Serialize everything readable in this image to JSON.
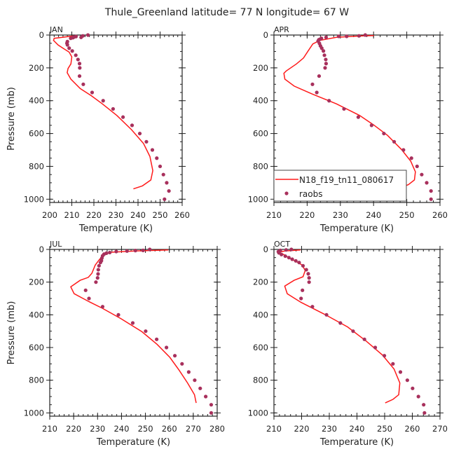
{
  "title": "Thule_Greenland  latitude= 77 N longitude= 67 W",
  "legend": {
    "model": "N18_f19_tn11_080617",
    "obs": "raobs"
  },
  "colors": {
    "model": "#ff1a1a",
    "obs": "#a8305c",
    "axis": "#222222"
  },
  "chart_data": [
    {
      "type": "line",
      "title": "JAN",
      "xlabel": "Temperature (K)",
      "ylabel": "Pressure (mb)",
      "xlim": [
        200,
        260
      ],
      "ylim": [
        0,
        1020
      ],
      "y_inverted": true,
      "xticks": [
        200,
        210,
        220,
        230,
        240,
        250,
        260
      ],
      "yticks": [
        0,
        200,
        400,
        600,
        800,
        1000
      ],
      "model": {
        "T": [
          210.8,
          202,
          201.7,
          203.8,
          206.3,
          208.8,
          210,
          209.6,
          208.3,
          207.9,
          209.6,
          213.8,
          218.8,
          223.8,
          230.4,
          237,
          242.5,
          245.4,
          246.7,
          245.8,
          242,
          237.9
        ],
        "p": [
          5,
          20,
          33,
          61,
          83,
          104,
          133,
          176,
          204,
          229,
          269,
          326,
          369,
          419,
          490,
          576,
          661,
          740,
          826,
          883,
          919,
          937
        ]
      },
      "raobs": {
        "T": [
          217.3,
          215,
          214.2,
          211.9,
          211,
          210.5,
          209.5,
          208,
          207.8,
          208,
          208.8,
          210.2,
          211.8,
          212.8,
          213.5,
          213.6,
          213.5,
          215.2,
          219.2,
          224.2,
          228.7,
          233.2,
          237.3,
          240.8,
          243.8,
          246.5,
          248.5,
          250,
          251.5,
          253,
          254,
          252
        ],
        "p": [
          0,
          5,
          14,
          9,
          12,
          16,
          20,
          40,
          50,
          60,
          80,
          97,
          123,
          149,
          174,
          200,
          250,
          300,
          350,
          400,
          450,
          500,
          550,
          600,
          650,
          700,
          750,
          800,
          850,
          900,
          950,
          1000
        ]
      }
    },
    {
      "type": "line",
      "title": "APR",
      "xlabel": "Temperature (K)",
      "ylabel": "",
      "xlim": [
        210,
        260
      ],
      "ylim": [
        0,
        1020
      ],
      "y_inverted": true,
      "xticks": [
        210,
        220,
        230,
        240,
        250,
        260
      ],
      "yticks": [
        0,
        200,
        400,
        600,
        800,
        1000
      ],
      "model": {
        "T": [
          240.1,
          235.8,
          228.8,
          223.8,
          221.7,
          220.3,
          218.9,
          216.8,
          213.7,
          213,
          213.3,
          216.1,
          221.7,
          228.8,
          235.8,
          240,
          244.2,
          248.4,
          251.2,
          252.6,
          252.3,
          250.5,
          247.4
        ],
        "p": [
          3,
          6,
          14,
          33,
          54,
          97,
          140,
          176,
          219,
          233,
          269,
          311,
          361,
          419,
          490,
          547,
          611,
          697,
          769,
          833,
          883,
          911,
          937
        ]
      },
      "raobs": {
        "T": [
          237.5,
          235.6,
          231.9,
          229.5,
          225.7,
          224.3,
          223.8,
          223.5,
          223.3,
          223.7,
          224,
          224.4,
          224.9,
          225.2,
          225.6,
          225.7,
          225.4,
          223.6,
          221.6,
          222.9,
          226.6,
          231.1,
          235.4,
          239.4,
          243.1,
          246.2,
          249,
          251.4,
          253.1,
          254.5,
          256,
          257.3,
          257.3
        ],
        "p": [
          0,
          5,
          8,
          8,
          14,
          20,
          26,
          29,
          37,
          51,
          66,
          80,
          97,
          123,
          149,
          174,
          200,
          250,
          300,
          350,
          400,
          450,
          500,
          550,
          600,
          650,
          700,
          750,
          800,
          850,
          900,
          950,
          1000
        ]
      }
    },
    {
      "type": "line",
      "title": "JUL",
      "xlabel": "Temperature (K)",
      "ylabel": "Pressure (mb)",
      "xlim": [
        210,
        280
      ],
      "ylim": [
        0,
        1020
      ],
      "y_inverted": true,
      "xticks": [
        210,
        220,
        230,
        240,
        250,
        260,
        270,
        280
      ],
      "yticks": [
        0,
        200,
        400,
        600,
        800,
        1000
      ],
      "model": {
        "T": [
          259.6,
          245.6,
          235.9,
          232.6,
          230.5,
          229,
          227.6,
          226.1,
          222.7,
          218.8,
          220.2,
          226.1,
          232,
          239.8,
          248.5,
          254.9,
          260.2,
          264.1,
          267.6,
          270.5,
          271.2
        ],
        "p": [
          3,
          10,
          17,
          31,
          67,
          96,
          146,
          171,
          189,
          229,
          271,
          317,
          360,
          424,
          503,
          581,
          660,
          739,
          817,
          889,
          939
        ]
      },
      "raobs": {
        "T": [
          251.8,
          249,
          245.8,
          242.3,
          237.8,
          235.1,
          233.7,
          232.7,
          232.1,
          231.8,
          231.6,
          231.2,
          230.6,
          230.3,
          230.2,
          230,
          229.3,
          225,
          226.4,
          232.1,
          238.7,
          244.7,
          250.1,
          254.7,
          258.8,
          262.3,
          265.3,
          268.1,
          270.6,
          272.9,
          275.2,
          277.5,
          277.5
        ],
        "p": [
          0,
          6,
          7,
          10,
          13,
          19,
          23,
          29,
          39,
          53,
          69,
          80,
          100,
          124,
          150,
          174,
          200,
          250,
          300,
          350,
          400,
          450,
          500,
          550,
          600,
          650,
          700,
          750,
          800,
          850,
          900,
          950,
          1000
        ]
      }
    },
    {
      "type": "line",
      "title": "OCT",
      "xlabel": "Temperature (K)",
      "ylabel": "",
      "xlim": [
        210,
        270
      ],
      "ylim": [
        0,
        1020
      ],
      "y_inverted": true,
      "xticks": [
        210,
        220,
        230,
        240,
        250,
        260,
        270
      ],
      "yticks": [
        0,
        200,
        400,
        600,
        800,
        1000
      ],
      "model": {
        "T": [
          219.6,
          213.9,
          211.8,
          213.5,
          215.6,
          218.1,
          220.2,
          221.3,
          220.5,
          217.3,
          213.9,
          214.8,
          219.8,
          228.2,
          236.6,
          243.3,
          249.2,
          253.4,
          255.5,
          255.1,
          253,
          250.2
        ],
        "p": [
          3,
          10,
          17,
          31,
          53,
          74,
          96,
          129,
          167,
          189,
          224,
          271,
          324,
          396,
          474,
          560,
          646,
          731,
          817,
          889,
          917,
          939
        ]
      },
      "raobs": {
        "T": [
          216.3,
          214.4,
          212.3,
          211.6,
          211.8,
          212.7,
          214.1,
          215.4,
          216.6,
          217.9,
          219.1,
          220.5,
          221.7,
          222.4,
          222.7,
          222.7,
          220.3,
          219.8,
          223.9,
          229,
          234,
          238.6,
          242.7,
          246.6,
          249.9,
          253,
          255.7,
          258.2,
          260.1,
          262.2,
          264.1,
          264.4
        ],
        "p": [
          0,
          3,
          6,
          14,
          21,
          31,
          41,
          50,
          60,
          70,
          80,
          100,
          124,
          149,
          174,
          200,
          250,
          300,
          350,
          400,
          450,
          500,
          550,
          600,
          650,
          700,
          750,
          800,
          850,
          900,
          950,
          1000
        ]
      }
    }
  ]
}
